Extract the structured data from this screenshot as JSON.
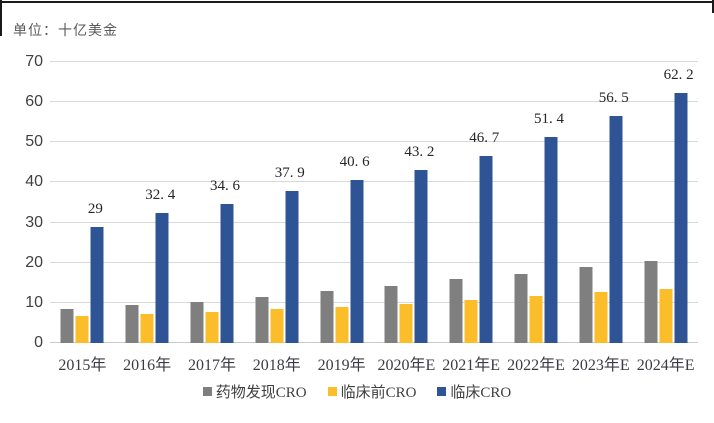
{
  "unit_label": "单位：十亿美金",
  "chart_data": {
    "type": "bar",
    "title": "",
    "ylabel": "十亿美金",
    "xlabel": "",
    "categories": [
      "2015年",
      "2016年",
      "2017年",
      "2018年",
      "2019年",
      "2020年E",
      "2021年E",
      "2022年E",
      "2023年E",
      "2024年E"
    ],
    "series": [
      {
        "name": "药物发现CRO",
        "color": "#7f7f7f",
        "values": [
          8.5,
          9.5,
          10.2,
          11.5,
          13.0,
          14.2,
          16.0,
          17.3,
          18.9,
          20.4
        ]
      },
      {
        "name": "临床前CRO",
        "color": "#fcbd2b",
        "values": [
          6.7,
          7.2,
          7.7,
          8.5,
          9.0,
          9.7,
          10.7,
          11.8,
          12.6,
          13.5
        ]
      },
      {
        "name": "临床CRO",
        "color": "#2f5496",
        "values": [
          29,
          32.4,
          34.6,
          37.9,
          40.6,
          43.2,
          46.7,
          51.4,
          56.5,
          62.2
        ],
        "data_labels": [
          "29",
          "32. 4",
          "34. 6",
          "37. 9",
          "40. 6",
          "43. 2",
          "46. 7",
          "51. 4",
          "56. 5",
          "62. 2"
        ]
      }
    ],
    "ylim": [
      0,
      70
    ],
    "yticks": [
      0,
      10,
      20,
      30,
      40,
      50,
      60,
      70
    ],
    "grid": true,
    "legend_position": "bottom"
  },
  "colors": {
    "grid": "#d9d9d9",
    "baseline": "#c8c8c8",
    "border": "#1a1a1a"
  }
}
